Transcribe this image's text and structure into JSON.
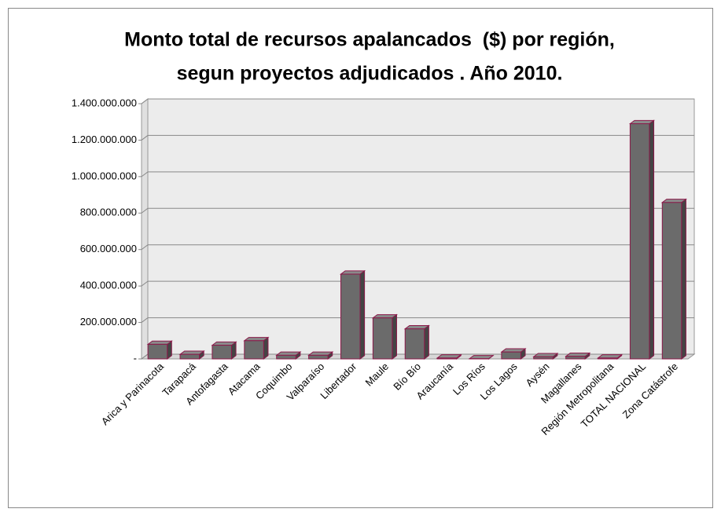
{
  "chart_data": {
    "type": "bar3d",
    "title": [
      "Monto total de recursos apalancados  ($) por región,",
      "segun proyectos adjudicados . Año 2010."
    ],
    "categories": [
      "Arica y Parinacota",
      "Tarapacá",
      "Antofagasta",
      "Atacama",
      "Coquimbo",
      "Valparaíso",
      "Libertador",
      "Maule",
      "Bío Bío",
      "Araucanía",
      "Los Ríos",
      "Los Lagos",
      "Aysén",
      "Magallanes",
      "Región Metropolitana",
      "TOTAL NACIONAL",
      "Zona Catástrofe"
    ],
    "values": [
      80000000,
      25000000,
      75000000,
      100000000,
      20000000,
      20000000,
      465000000,
      225000000,
      165000000,
      5000000,
      1000000,
      38000000,
      12000000,
      14000000,
      5000000,
      1290000000,
      858000000
    ],
    "color": "#6b6b6b",
    "edge_color": "#8b1a4a",
    "ylim": [
      0,
      1400000000
    ],
    "yticks": [
      {
        "value": 0,
        "label": "-"
      },
      {
        "value": 200000000,
        "label": "200.000.000"
      },
      {
        "value": 400000000,
        "label": "400.000.000"
      },
      {
        "value": 600000000,
        "label": "600.000.000"
      },
      {
        "value": 800000000,
        "label": "800.000.000"
      },
      {
        "value": 1000000000,
        "label": "1.000.000.000"
      },
      {
        "value": 1200000000,
        "label": "1.200.000.000"
      },
      {
        "value": 1400000000,
        "label": "1.400.000.000"
      }
    ],
    "grid": true
  }
}
